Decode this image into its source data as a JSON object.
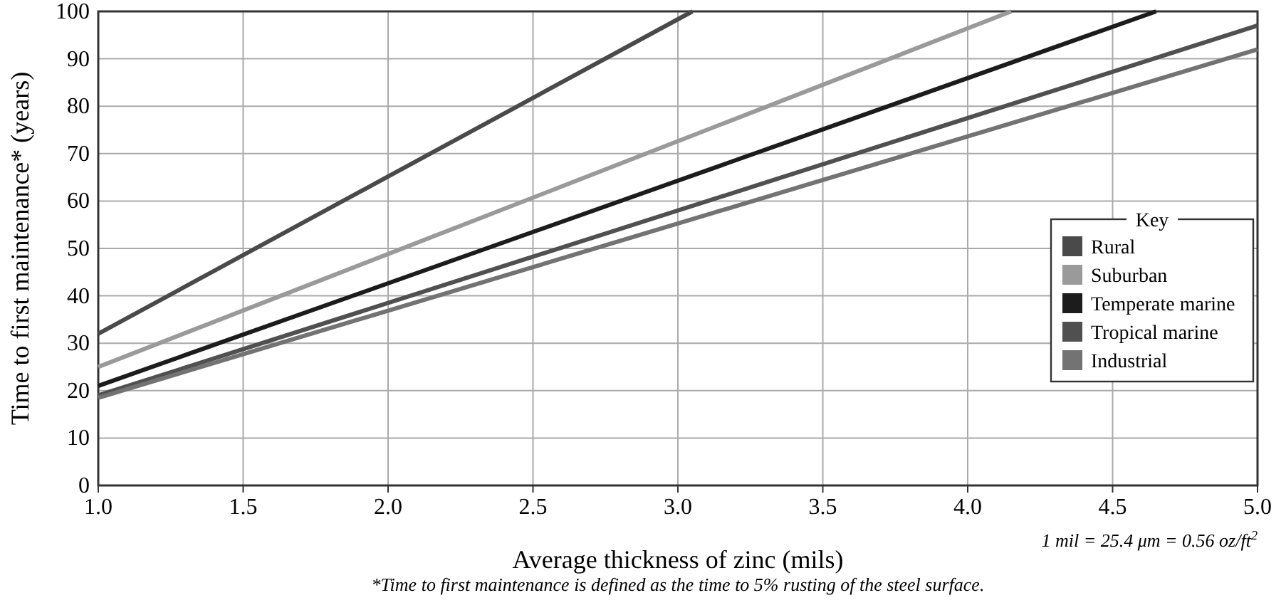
{
  "chart_data": {
    "type": "line",
    "xlabel": "Average thickness of zinc (mils)",
    "ylabel": "Time to first maintenance* (years)",
    "legend_title": "Key",
    "legend": "right",
    "grid": true,
    "marker": "none",
    "line_style": "solid",
    "xlim": [
      1.0,
      5.0
    ],
    "xticks": [
      {
        "value": 1,
        "label": "1.0"
      },
      {
        "value": 1.5,
        "label": "1.5"
      },
      {
        "value": 2,
        "label": "2.0"
      },
      {
        "value": 2.5,
        "label": "2.5"
      },
      {
        "value": 3,
        "label": "3.0"
      },
      {
        "value": 3.5,
        "label": "3.5"
      },
      {
        "value": 4,
        "label": "4.0"
      },
      {
        "value": 4.5,
        "label": "4.5"
      },
      {
        "value": 5,
        "label": "5.0"
      }
    ],
    "ylim": [
      0,
      100
    ],
    "yticks": [
      0,
      10,
      20,
      30,
      40,
      50,
      60,
      70,
      80,
      90,
      100
    ],
    "series": [
      {
        "name": "Rural",
        "color": "#4a4a4a",
        "x": [
          1.0,
          3.05
        ],
        "values": [
          32,
          100
        ]
      },
      {
        "name": "Suburban",
        "color": "#9a9a9a",
        "x": [
          1.0,
          4.15
        ],
        "values": [
          25,
          100
        ]
      },
      {
        "name": "Temperate marine",
        "color": "#1c1c1c",
        "x": [
          1.0,
          4.65
        ],
        "values": [
          21,
          100
        ]
      },
      {
        "name": "Tropical marine",
        "color": "#505050",
        "x": [
          1.0,
          5.0
        ],
        "values": [
          19,
          97
        ]
      },
      {
        "name": "Industrial",
        "color": "#737373",
        "x": [
          1.0,
          5.0
        ],
        "values": [
          18.5,
          92
        ]
      }
    ],
    "annotations": [
      "1 mil = 25.4 μm = 0.56 oz/ft$^{2}$",
      "*Time to first maintenance is defined as the time to 5% rusting of the steel surface."
    ]
  }
}
